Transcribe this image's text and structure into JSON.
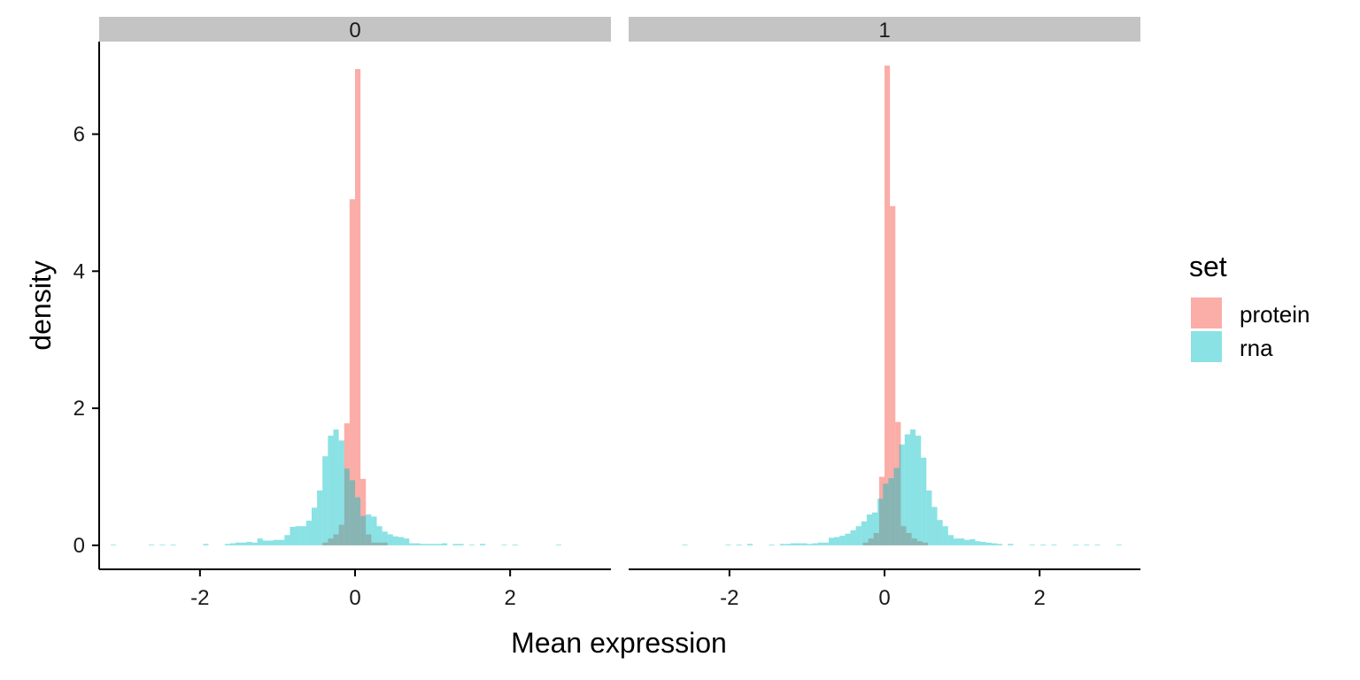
{
  "chart_data": {
    "type": "histogram",
    "xlabel": "Mean expression",
    "ylabel": "density",
    "xlim": [
      -3.3,
      3.3
    ],
    "ylim": [
      -0.35,
      7.35
    ],
    "x_ticks": [
      -2,
      0,
      2
    ],
    "y_ticks": [
      0,
      2,
      4,
      6
    ],
    "grid": false,
    "legend": {
      "title": "set",
      "position": "right",
      "entries": [
        {
          "label": "protein",
          "color": "#F8766D"
        },
        {
          "label": "rna",
          "color": "#00BFC4"
        }
      ]
    },
    "bin_width": 0.07,
    "panels": [
      {
        "strip_label": "0",
        "series": [
          {
            "name": "protein",
            "color": "#F8766D",
            "bins": [
              {
                "x": -0.385,
                "y": 0.04
              },
              {
                "x": -0.315,
                "y": 0.1
              },
              {
                "x": -0.245,
                "y": 0.16
              },
              {
                "x": -0.175,
                "y": 0.3
              },
              {
                "x": -0.105,
                "y": 1.78
              },
              {
                "x": -0.035,
                "y": 5.05
              },
              {
                "x": 0.035,
                "y": 6.95
              },
              {
                "x": 0.105,
                "y": 0.97
              },
              {
                "x": 0.175,
                "y": 0.16
              },
              {
                "x": 0.245,
                "y": 0.04
              },
              {
                "x": 0.315,
                "y": 0.04
              },
              {
                "x": 0.385,
                "y": 0.04
              }
            ]
          },
          {
            "name": "rna",
            "color": "#00BFC4",
            "bins": [
              {
                "x": -3.115,
                "y": 0.01
              },
              {
                "x": -2.625,
                "y": 0.01
              },
              {
                "x": -2.485,
                "y": 0.01
              },
              {
                "x": -2.345,
                "y": 0.01
              },
              {
                "x": -1.925,
                "y": 0.02
              },
              {
                "x": -1.645,
                "y": 0.02
              },
              {
                "x": -1.575,
                "y": 0.03
              },
              {
                "x": -1.505,
                "y": 0.04
              },
              {
                "x": -1.435,
                "y": 0.04
              },
              {
                "x": -1.365,
                "y": 0.05
              },
              {
                "x": -1.295,
                "y": 0.04
              },
              {
                "x": -1.225,
                "y": 0.1
              },
              {
                "x": -1.155,
                "y": 0.07
              },
              {
                "x": -1.085,
                "y": 0.07
              },
              {
                "x": -1.015,
                "y": 0.08
              },
              {
                "x": -0.945,
                "y": 0.08
              },
              {
                "x": -0.875,
                "y": 0.15
              },
              {
                "x": -0.805,
                "y": 0.27
              },
              {
                "x": -0.735,
                "y": 0.28
              },
              {
                "x": -0.665,
                "y": 0.28
              },
              {
                "x": -0.595,
                "y": 0.36
              },
              {
                "x": -0.525,
                "y": 0.55
              },
              {
                "x": -0.455,
                "y": 0.8
              },
              {
                "x": -0.385,
                "y": 1.3
              },
              {
                "x": -0.315,
                "y": 1.6
              },
              {
                "x": -0.245,
                "y": 1.69
              },
              {
                "x": -0.175,
                "y": 1.53
              },
              {
                "x": -0.105,
                "y": 1.12
              },
              {
                "x": -0.035,
                "y": 0.95
              },
              {
                "x": 0.035,
                "y": 0.7
              },
              {
                "x": 0.105,
                "y": 0.43
              },
              {
                "x": 0.175,
                "y": 0.45
              },
              {
                "x": 0.245,
                "y": 0.42
              },
              {
                "x": 0.315,
                "y": 0.28
              },
              {
                "x": 0.385,
                "y": 0.2
              },
              {
                "x": 0.455,
                "y": 0.16
              },
              {
                "x": 0.525,
                "y": 0.13
              },
              {
                "x": 0.595,
                "y": 0.12
              },
              {
                "x": 0.665,
                "y": 0.1
              },
              {
                "x": 0.735,
                "y": 0.03
              },
              {
                "x": 0.805,
                "y": 0.03
              },
              {
                "x": 0.875,
                "y": 0.02
              },
              {
                "x": 0.945,
                "y": 0.02
              },
              {
                "x": 1.015,
                "y": 0.02
              },
              {
                "x": 1.085,
                "y": 0.02
              },
              {
                "x": 1.155,
                "y": 0.03
              },
              {
                "x": 1.295,
                "y": 0.02
              },
              {
                "x": 1.365,
                "y": 0.02
              },
              {
                "x": 1.505,
                "y": 0.01
              },
              {
                "x": 1.645,
                "y": 0.02
              },
              {
                "x": 1.925,
                "y": 0.01
              },
              {
                "x": 2.065,
                "y": 0.01
              },
              {
                "x": 2.625,
                "y": 0.01
              }
            ]
          }
        ]
      },
      {
        "strip_label": "1",
        "series": [
          {
            "name": "protein",
            "color": "#F8766D",
            "bins": [
              {
                "x": -0.245,
                "y": 0.04
              },
              {
                "x": -0.175,
                "y": 0.1
              },
              {
                "x": -0.105,
                "y": 0.18
              },
              {
                "x": -0.035,
                "y": 1.0
              },
              {
                "x": 0.035,
                "y": 7.0
              },
              {
                "x": 0.105,
                "y": 4.95
              },
              {
                "x": 0.175,
                "y": 1.8
              },
              {
                "x": 0.245,
                "y": 0.28
              },
              {
                "x": 0.315,
                "y": 0.18
              },
              {
                "x": 0.385,
                "y": 0.1
              },
              {
                "x": 0.455,
                "y": 0.06
              },
              {
                "x": 0.525,
                "y": 0.04
              }
            ]
          },
          {
            "name": "rna",
            "color": "#00BFC4",
            "bins": [
              {
                "x": -2.575,
                "y": 0.01
              },
              {
                "x": -2.015,
                "y": 0.01
              },
              {
                "x": -1.875,
                "y": 0.01
              },
              {
                "x": -1.735,
                "y": 0.02
              },
              {
                "x": -1.455,
                "y": 0.01
              },
              {
                "x": -1.315,
                "y": 0.02
              },
              {
                "x": -1.245,
                "y": 0.02
              },
              {
                "x": -1.175,
                "y": 0.03
              },
              {
                "x": -1.105,
                "y": 0.03
              },
              {
                "x": -1.035,
                "y": 0.03
              },
              {
                "x": -0.965,
                "y": 0.02
              },
              {
                "x": -0.895,
                "y": 0.03
              },
              {
                "x": -0.825,
                "y": 0.04
              },
              {
                "x": -0.755,
                "y": 0.04
              },
              {
                "x": -0.685,
                "y": 0.11
              },
              {
                "x": -0.615,
                "y": 0.12
              },
              {
                "x": -0.545,
                "y": 0.14
              },
              {
                "x": -0.475,
                "y": 0.17
              },
              {
                "x": -0.405,
                "y": 0.22
              },
              {
                "x": -0.335,
                "y": 0.28
              },
              {
                "x": -0.265,
                "y": 0.35
              },
              {
                "x": -0.195,
                "y": 0.45
              },
              {
                "x": -0.125,
                "y": 0.48
              },
              {
                "x": -0.055,
                "y": 0.68
              },
              {
                "x": 0.015,
                "y": 0.9
              },
              {
                "x": 0.085,
                "y": 0.98
              },
              {
                "x": 0.155,
                "y": 1.13
              },
              {
                "x": 0.225,
                "y": 1.47
              },
              {
                "x": 0.295,
                "y": 1.62
              },
              {
                "x": 0.365,
                "y": 1.69
              },
              {
                "x": 0.435,
                "y": 1.6
              },
              {
                "x": 0.505,
                "y": 1.28
              },
              {
                "x": 0.575,
                "y": 0.8
              },
              {
                "x": 0.645,
                "y": 0.56
              },
              {
                "x": 0.715,
                "y": 0.37
              },
              {
                "x": 0.785,
                "y": 0.28
              },
              {
                "x": 0.855,
                "y": 0.15
              },
              {
                "x": 0.925,
                "y": 0.1
              },
              {
                "x": 0.995,
                "y": 0.1
              },
              {
                "x": 1.065,
                "y": 0.08
              },
              {
                "x": 1.135,
                "y": 0.09
              },
              {
                "x": 1.205,
                "y": 0.06
              },
              {
                "x": 1.275,
                "y": 0.05
              },
              {
                "x": 1.345,
                "y": 0.04
              },
              {
                "x": 1.415,
                "y": 0.03
              },
              {
                "x": 1.485,
                "y": 0.02
              },
              {
                "x": 1.625,
                "y": 0.02
              },
              {
                "x": 1.905,
                "y": 0.01
              },
              {
                "x": 2.045,
                "y": 0.01
              },
              {
                "x": 2.185,
                "y": 0.01
              },
              {
                "x": 2.465,
                "y": 0.01
              },
              {
                "x": 2.605,
                "y": 0.01
              },
              {
                "x": 2.745,
                "y": 0.01
              },
              {
                "x": 3.025,
                "y": 0.01
              }
            ]
          }
        ]
      }
    ]
  }
}
